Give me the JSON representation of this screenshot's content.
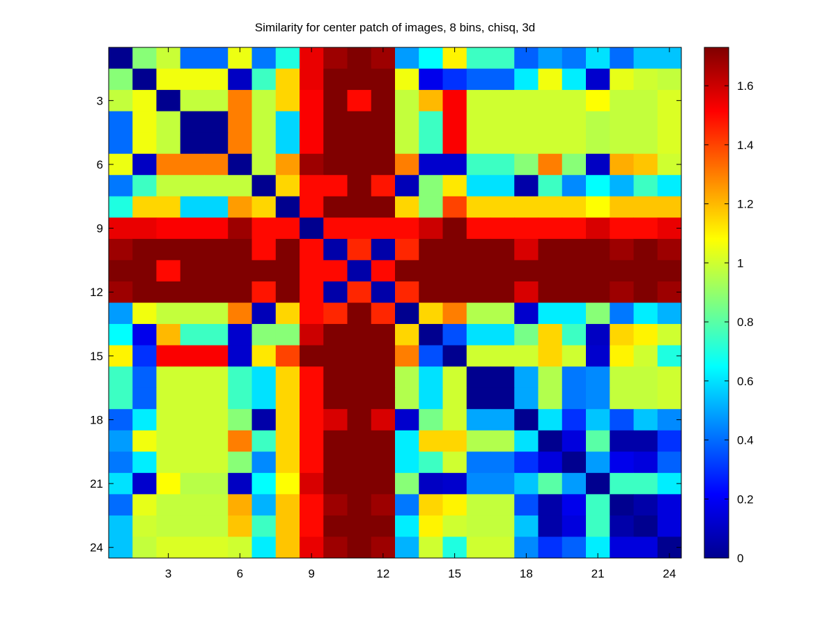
{
  "chart_data": {
    "type": "heatmap",
    "title": "Similarity for center patch of images, 8 bins, chisq, 3d",
    "xlabel": "",
    "ylabel": "",
    "colormap": "jet",
    "clim": [
      0,
      1.73
    ],
    "x_ticks": [
      "3",
      "6",
      "9",
      "12",
      "15",
      "18",
      "21",
      "24"
    ],
    "y_ticks": [
      "3",
      "6",
      "9",
      "12",
      "15",
      "18",
      "21",
      "24"
    ],
    "colorbar_ticks": [
      "0",
      "0.2",
      "0.4",
      "0.6",
      "0.8",
      "1",
      "1.2",
      "1.4",
      "1.6"
    ],
    "matrix": [
      [
        0.0,
        0.88,
        0.99,
        0.4,
        0.4,
        1.05,
        0.42,
        0.7,
        1.55,
        1.68,
        1.73,
        1.68,
        0.48,
        0.65,
        1.1,
        0.75,
        0.75,
        0.38,
        0.48,
        0.42,
        0.6,
        0.4,
        0.55,
        0.55
      ],
      [
        0.88,
        0.0,
        1.06,
        1.06,
        1.06,
        0.1,
        0.75,
        1.15,
        1.55,
        1.73,
        1.73,
        1.73,
        1.06,
        0.18,
        0.3,
        0.38,
        0.38,
        0.62,
        1.06,
        0.62,
        0.12,
        1.04,
        1.0,
        0.98
      ],
      [
        0.98,
        1.06,
        0.0,
        0.98,
        0.98,
        1.3,
        0.98,
        1.15,
        1.52,
        1.73,
        1.5,
        1.73,
        0.98,
        1.2,
        1.52,
        1.0,
        1.0,
        1.0,
        1.0,
        1.0,
        1.08,
        0.98,
        0.98,
        1.02
      ],
      [
        0.4,
        1.06,
        0.98,
        0.0,
        0.0,
        1.3,
        0.98,
        0.58,
        1.52,
        1.73,
        1.73,
        1.73,
        0.98,
        0.75,
        1.52,
        1.0,
        1.0,
        1.0,
        1.0,
        1.0,
        0.96,
        0.98,
        0.98,
        1.02
      ],
      [
        0.4,
        1.06,
        0.98,
        0.0,
        0.0,
        1.3,
        0.98,
        0.58,
        1.52,
        1.73,
        1.73,
        1.73,
        0.98,
        0.75,
        1.52,
        1.0,
        1.0,
        1.0,
        1.0,
        1.0,
        0.96,
        0.98,
        0.98,
        1.02
      ],
      [
        1.05,
        0.1,
        1.3,
        1.3,
        1.3,
        0.0,
        0.98,
        1.25,
        1.68,
        1.73,
        1.73,
        1.73,
        1.3,
        0.12,
        0.12,
        0.75,
        0.75,
        0.88,
        1.3,
        0.88,
        0.1,
        1.22,
        1.18,
        1.0
      ],
      [
        0.42,
        0.75,
        0.98,
        0.98,
        0.98,
        0.98,
        0.0,
        1.15,
        1.5,
        1.5,
        1.73,
        1.48,
        0.08,
        0.88,
        1.12,
        0.6,
        0.6,
        0.05,
        0.75,
        0.45,
        0.65,
        0.52,
        0.75,
        0.62
      ],
      [
        0.7,
        1.15,
        1.15,
        0.58,
        0.58,
        1.25,
        1.15,
        0.0,
        1.5,
        1.73,
        1.73,
        1.73,
        1.15,
        0.88,
        1.4,
        1.15,
        1.15,
        1.15,
        1.15,
        1.15,
        1.08,
        1.18,
        1.18,
        1.18
      ],
      [
        1.55,
        1.55,
        1.52,
        1.52,
        1.52,
        1.68,
        1.5,
        1.5,
        0.0,
        1.5,
        1.5,
        1.5,
        1.5,
        1.6,
        1.73,
        1.5,
        1.5,
        1.5,
        1.5,
        1.5,
        1.58,
        1.5,
        1.5,
        1.55
      ],
      [
        1.68,
        1.73,
        1.73,
        1.73,
        1.73,
        1.73,
        1.5,
        1.73,
        1.5,
        0.05,
        1.45,
        0.05,
        1.45,
        1.73,
        1.73,
        1.73,
        1.73,
        1.58,
        1.73,
        1.73,
        1.73,
        1.68,
        1.73,
        1.68
      ],
      [
        1.73,
        1.73,
        1.5,
        1.73,
        1.73,
        1.73,
        1.73,
        1.73,
        1.5,
        1.5,
        0.05,
        1.5,
        1.73,
        1.73,
        1.73,
        1.73,
        1.73,
        1.73,
        1.73,
        1.73,
        1.73,
        1.73,
        1.73,
        1.73
      ],
      [
        1.68,
        1.73,
        1.73,
        1.73,
        1.73,
        1.73,
        1.48,
        1.73,
        1.5,
        0.05,
        1.45,
        0.05,
        1.45,
        1.73,
        1.73,
        1.73,
        1.73,
        1.58,
        1.73,
        1.73,
        1.73,
        1.68,
        1.73,
        1.68
      ],
      [
        0.48,
        1.06,
        0.98,
        0.98,
        0.98,
        1.3,
        0.08,
        1.15,
        1.5,
        1.45,
        1.73,
        1.45,
        0.0,
        1.15,
        1.3,
        0.95,
        0.95,
        0.12,
        0.62,
        0.62,
        0.88,
        0.42,
        0.62,
        0.52
      ],
      [
        0.65,
        0.18,
        1.2,
        0.75,
        0.75,
        0.12,
        0.88,
        0.88,
        1.6,
        1.73,
        1.73,
        1.73,
        1.15,
        0.0,
        0.35,
        0.6,
        0.6,
        0.85,
        1.15,
        0.75,
        0.1,
        1.15,
        1.1,
        1.0
      ],
      [
        1.1,
        0.3,
        1.52,
        1.52,
        1.52,
        0.12,
        1.12,
        1.4,
        1.73,
        1.73,
        1.73,
        1.73,
        1.3,
        0.35,
        0.0,
        1.0,
        1.0,
        1.0,
        1.15,
        1.0,
        0.12,
        1.1,
        1.0,
        0.7
      ],
      [
        0.75,
        0.38,
        1.0,
        1.0,
        1.0,
        0.75,
        0.6,
        1.15,
        1.5,
        1.73,
        1.73,
        1.73,
        0.95,
        0.6,
        1.0,
        0.0,
        0.0,
        0.5,
        0.95,
        0.42,
        0.45,
        0.98,
        0.98,
        1.0
      ],
      [
        0.75,
        0.38,
        1.0,
        1.0,
        1.0,
        0.75,
        0.6,
        1.15,
        1.5,
        1.73,
        1.73,
        1.73,
        0.95,
        0.6,
        1.0,
        0.0,
        0.0,
        0.5,
        0.95,
        0.42,
        0.45,
        0.98,
        0.98,
        1.0
      ],
      [
        0.38,
        0.62,
        1.0,
        1.0,
        1.0,
        0.88,
        0.05,
        1.15,
        1.5,
        1.58,
        1.73,
        1.58,
        0.12,
        0.85,
        1.0,
        0.5,
        0.5,
        0.0,
        0.6,
        0.3,
        0.55,
        0.35,
        0.55,
        0.45
      ],
      [
        0.48,
        1.06,
        1.0,
        1.0,
        1.0,
        1.3,
        0.75,
        1.15,
        1.5,
        1.73,
        1.73,
        1.73,
        0.62,
        1.15,
        1.15,
        0.95,
        0.95,
        0.6,
        0.0,
        0.15,
        0.8,
        0.05,
        0.05,
        0.3
      ],
      [
        0.42,
        0.62,
        1.0,
        1.0,
        1.0,
        0.88,
        0.45,
        1.15,
        1.5,
        1.73,
        1.73,
        1.73,
        0.62,
        0.75,
        1.0,
        0.42,
        0.42,
        0.3,
        0.15,
        0.0,
        0.48,
        0.18,
        0.15,
        0.38
      ],
      [
        0.6,
        0.12,
        1.08,
        0.96,
        0.96,
        0.1,
        0.65,
        1.08,
        1.58,
        1.73,
        1.73,
        1.73,
        0.88,
        0.1,
        0.12,
        0.45,
        0.45,
        0.55,
        0.8,
        0.48,
        0.0,
        0.75,
        0.75,
        0.62
      ],
      [
        0.4,
        1.04,
        0.98,
        0.98,
        0.98,
        1.22,
        0.52,
        1.18,
        1.5,
        1.68,
        1.73,
        1.68,
        0.42,
        1.15,
        1.1,
        0.98,
        0.98,
        0.35,
        0.05,
        0.18,
        0.75,
        0.0,
        0.05,
        0.15
      ],
      [
        0.55,
        1.0,
        0.98,
        0.98,
        0.98,
        1.18,
        0.75,
        1.18,
        1.5,
        1.73,
        1.73,
        1.73,
        0.62,
        1.1,
        1.0,
        0.98,
        0.98,
        0.55,
        0.05,
        0.15,
        0.75,
        0.05,
        0.0,
        0.15
      ],
      [
        0.55,
        0.98,
        1.02,
        1.02,
        1.02,
        1.0,
        0.62,
        1.18,
        1.55,
        1.68,
        1.73,
        1.68,
        0.52,
        1.0,
        0.7,
        1.0,
        1.0,
        0.45,
        0.3,
        0.38,
        0.62,
        0.15,
        0.15,
        0.0
      ]
    ]
  }
}
